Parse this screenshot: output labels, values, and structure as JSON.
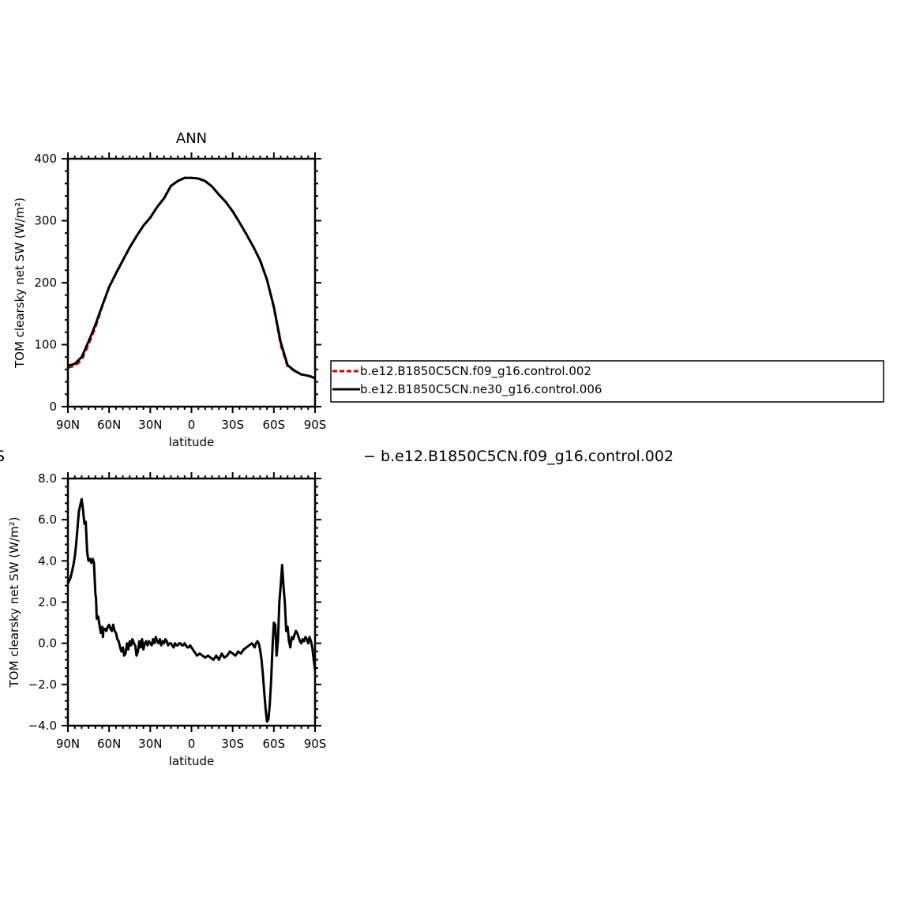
{
  "chart_data": [
    {
      "type": "line",
      "title": "ANN",
      "xlabel": "latitude",
      "ylabel": "TOM clearsky net SW (W/m²)",
      "xlim": [
        90,
        -90
      ],
      "ylim": [
        0,
        400
      ],
      "x_tick_values": [
        90,
        60,
        30,
        0,
        -30,
        -60,
        -90
      ],
      "x_tick_labels": [
        "90N",
        "60N",
        "30N",
        "0",
        "30S",
        "60S",
        "90S"
      ],
      "y_tick_values": [
        0,
        100,
        200,
        300,
        400
      ],
      "y_tick_labels": [
        "0",
        "100",
        "200",
        "300",
        "400"
      ],
      "legend_position": "right",
      "series": [
        {
          "name": "b.e12.B1850C5CN.f09_g16.control.002",
          "color": "#e00000",
          "dash": "dashed",
          "x": [
            90,
            85,
            80,
            75,
            70,
            65,
            60,
            55,
            50,
            45,
            40,
            35,
            30,
            25,
            20,
            15,
            10,
            5,
            0,
            -5,
            -10,
            -15,
            -20,
            -25,
            -30,
            -35,
            -40,
            -45,
            -50,
            -55,
            -60,
            -65,
            -70,
            -75,
            -80,
            -85,
            -90
          ],
          "y": [
            63,
            66,
            75,
            100,
            128,
            162,
            193,
            215,
            236,
            257,
            275,
            292,
            305,
            322,
            336,
            356,
            364,
            369,
            369,
            368,
            364,
            355,
            342,
            330,
            315,
            297,
            278,
            258,
            236,
            205,
            160,
            100,
            65,
            58,
            52,
            50,
            47
          ]
        },
        {
          "name": "b.e12.B1850C5CN.ne30_g16.control.006",
          "color": "#000000",
          "dash": "solid",
          "x": [
            90,
            85,
            80,
            75,
            70,
            65,
            60,
            55,
            50,
            45,
            40,
            35,
            30,
            25,
            20,
            15,
            10,
            5,
            0,
            -5,
            -10,
            -15,
            -20,
            -25,
            -30,
            -35,
            -40,
            -45,
            -50,
            -55,
            -60,
            -65,
            -70,
            -75,
            -80,
            -85,
            -90
          ],
          "y": [
            66,
            69,
            80,
            105,
            132,
            163,
            193,
            215,
            236,
            257,
            275,
            292,
            305,
            322,
            336,
            356,
            364,
            369,
            369,
            368,
            364,
            355,
            342,
            330,
            315,
            297,
            278,
            258,
            236,
            205,
            161,
            104,
            67,
            58,
            52,
            50,
            46
          ]
        }
      ]
    },
    {
      "type": "line",
      "title": "",
      "xlabel": "latitude",
      "ylabel": "TOM clearsky net SW (W/m²)",
      "xlim": [
        90,
        -90
      ],
      "ylim": [
        -4,
        8
      ],
      "x_tick_values": [
        90,
        60,
        30,
        0,
        -30,
        -60,
        -90
      ],
      "x_tick_labels": [
        "90N",
        "60N",
        "30N",
        "0",
        "30S",
        "60S",
        "90S"
      ],
      "y_tick_values": [
        -4,
        -2,
        0,
        2,
        4,
        6,
        8
      ],
      "y_tick_labels": [
        "−4.0",
        "−2.0",
        "0.0",
        "2.0",
        "4.0",
        "6.0",
        "8.0"
      ],
      "legend_label": "− b.e12.B1850C5CN.f09_g16.control.002",
      "left_fragment": "S",
      "series": [
        {
          "name": "",
          "color": "#000000",
          "dash": "solid",
          "x": [
            90,
            88,
            86,
            85,
            84,
            82,
            80,
            79,
            78,
            77,
            76,
            75.5,
            75,
            74,
            73,
            72,
            71,
            70,
            69.5,
            69,
            68,
            67,
            66,
            65,
            64.5,
            64,
            63,
            62,
            61,
            60,
            59,
            58,
            57,
            56,
            55,
            54,
            53,
            52,
            51,
            50,
            49,
            48,
            47,
            46,
            45,
            44,
            43,
            42,
            41,
            40,
            39,
            38,
            37,
            36,
            35,
            34,
            33,
            32,
            31,
            30,
            29,
            28,
            27,
            26,
            25,
            24,
            23,
            22,
            21,
            20,
            19,
            18,
            17,
            16,
            15,
            14,
            13,
            12,
            11,
            10,
            9,
            8,
            7,
            6,
            5,
            4,
            3,
            2,
            1,
            0,
            -2,
            -4,
            -6,
            -8,
            -10,
            -12,
            -14,
            -16,
            -18,
            -20,
            -22,
            -24,
            -26,
            -28,
            -30,
            -32,
            -34,
            -36,
            -38,
            -40,
            -42,
            -44,
            -46,
            -47,
            -48,
            -49,
            -50,
            -51,
            -52,
            -53,
            -54,
            -55,
            -56,
            -57,
            -58,
            -59,
            -60,
            -61,
            -62,
            -63,
            -64,
            -65,
            -66,
            -67,
            -68,
            -69,
            -70,
            -71,
            -72,
            -73,
            -74,
            -75,
            -76,
            -77,
            -78,
            -79,
            -80,
            -81,
            -82,
            -83,
            -84,
            -85,
            -86,
            -87,
            -88,
            -89,
            -90
          ],
          "y": [
            2.9,
            3.2,
            3.8,
            4.2,
            4.8,
            6.4,
            7.0,
            6.5,
            5.8,
            5.9,
            4.5,
            4.2,
            4.0,
            4.1,
            3.9,
            4.1,
            3.9,
            2.4,
            2.2,
            1.2,
            1.3,
            0.9,
            0.5,
            0.8,
            0.3,
            0.7,
            0.7,
            0.6,
            0.8,
            0.9,
            0.7,
            0.6,
            0.9,
            0.6,
            0.5,
            0.2,
            0.1,
            -0.2,
            -0.4,
            -0.2,
            -0.6,
            -0.5,
            0.0,
            -0.3,
            0.1,
            -0.1,
            0.2,
            0.0,
            -0.1,
            -0.6,
            -0.4,
            0.1,
            -0.2,
            0.2,
            -0.3,
            0.0,
            0.1,
            -0.1,
            0.1,
            0.0,
            -0.1,
            0.2,
            0.0,
            0.3,
            0.1,
            0.0,
            0.2,
            -0.1,
            0.1,
            0.0,
            0.2,
            0.1,
            -0.1,
            0.0,
            0.0,
            -0.1,
            -0.2,
            0.0,
            -0.1,
            -0.1,
            0.0,
            0.0,
            -0.1,
            -0.1,
            0.0,
            -0.1,
            -0.2,
            -0.2,
            -0.1,
            -0.2,
            -0.4,
            -0.6,
            -0.5,
            -0.6,
            -0.7,
            -0.6,
            -0.7,
            -0.8,
            -0.6,
            -0.8,
            -0.5,
            -0.7,
            -0.6,
            -0.4,
            -0.5,
            -0.6,
            -0.4,
            -0.5,
            -0.3,
            -0.2,
            -0.1,
            0.0,
            -0.2,
            0.0,
            0.1,
            0.0,
            -0.3,
            -0.8,
            -1.5,
            -2.4,
            -3.2,
            -3.8,
            -3.7,
            -3.0,
            -1.8,
            -0.2,
            1.0,
            0.9,
            -0.6,
            0.2,
            2.0,
            2.8,
            3.8,
            2.8,
            2.0,
            0.6,
            0.8,
            0.1,
            -0.2,
            0.3,
            0.2,
            0.4,
            0.6,
            0.5,
            0.3,
            0.1,
            0.0,
            0.2,
            0.1,
            0.3,
            0.2,
            0.0,
            0.3,
            0.1,
            -0.2,
            -0.8,
            -1.3
          ]
        }
      ]
    }
  ]
}
